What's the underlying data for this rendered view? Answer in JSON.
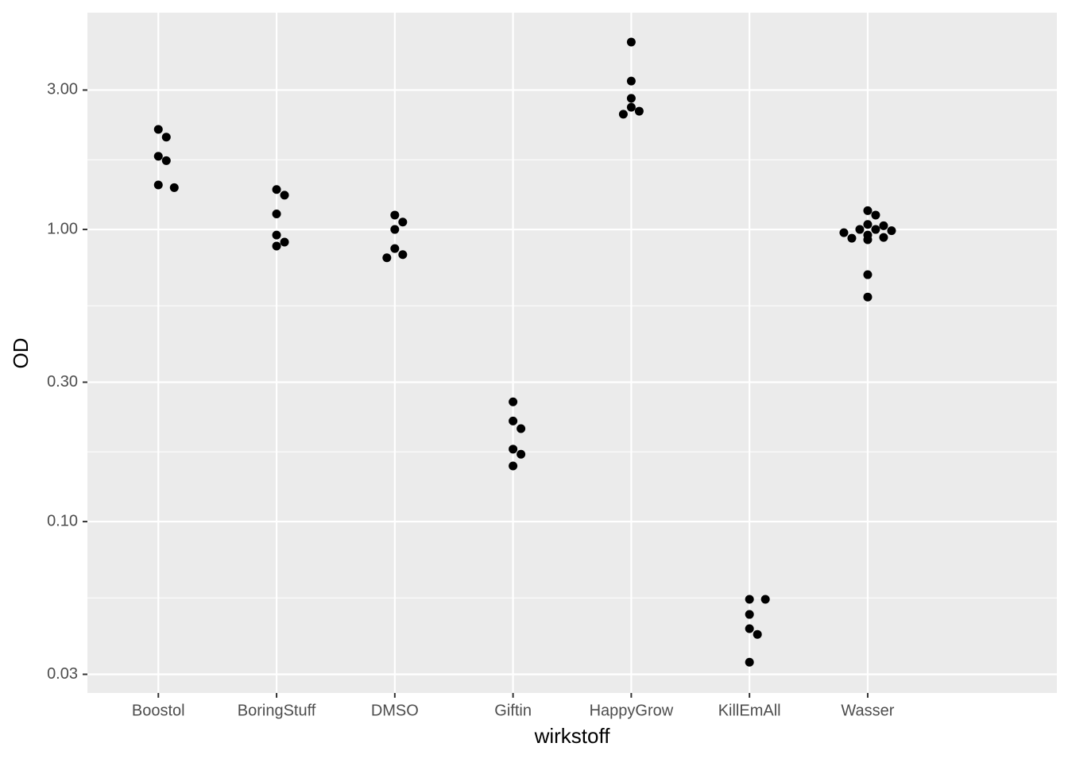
{
  "chart_data": {
    "type": "scatter",
    "x_label": "wirkstoff",
    "y_label": "OD",
    "categories": [
      "Boostol",
      "BoringStuff",
      "DMSO",
      "Giftin",
      "HappyGrow",
      "KillEmAll",
      "Wasser"
    ],
    "values": [
      [
        2.2,
        2.07,
        1.78,
        1.72,
        1.42,
        1.39
      ],
      [
        1.37,
        1.31,
        1.13,
        0.957,
        0.905,
        0.877
      ],
      [
        1.12,
        1.06,
        1.0,
        0.86,
        0.82,
        0.8
      ],
      [
        0.257,
        0.221,
        0.208,
        0.177,
        0.17,
        0.155
      ],
      [
        4.38,
        3.22,
        2.81,
        2.62,
        2.54,
        2.48
      ],
      [
        0.0542,
        0.0542,
        0.0481,
        0.043,
        0.0411,
        0.033
      ],
      [
        1.16,
        1.12,
        1.04,
        1.03,
        1.0,
        1.0,
        0.99,
        0.975,
        0.957,
        0.939,
        0.933,
        0.922,
        0.7,
        0.587
      ]
    ],
    "color": "#000000",
    "y_log": true,
    "ylim": [
      0.0259,
      5.52
    ],
    "yticks": [
      {
        "value": 0.03,
        "label": "0.03"
      },
      {
        "value": 0.1,
        "label": "0.10"
      },
      {
        "value": 0.3,
        "label": "0.30"
      },
      {
        "value": 1,
        "label": "1.00"
      },
      {
        "value": 3,
        "label": "3.00"
      }
    ],
    "y_minor_ticks": [
      0.0548,
      0.1732,
      0.5477,
      1.7321
    ],
    "grid": true
  }
}
